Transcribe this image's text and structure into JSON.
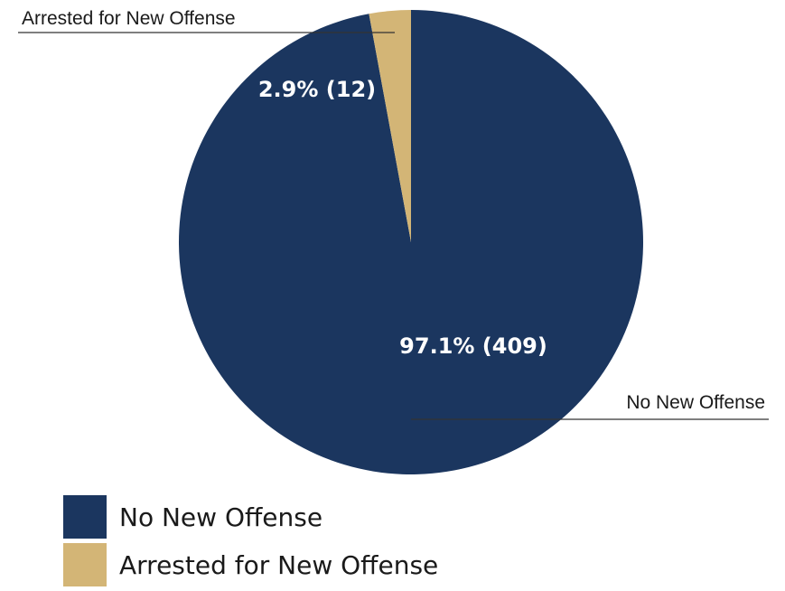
{
  "chart_data": {
    "type": "pie",
    "title": "",
    "start_angle_deg": 0,
    "direction": "clockwise",
    "slices": [
      {
        "label": "No New Offense",
        "percent": 97.1,
        "count": 409,
        "display": "97.1% (409)",
        "color": "#1b365f"
      },
      {
        "label": "Arrested for New Offense",
        "percent": 2.9,
        "count": 12,
        "display": "2.9% (12)",
        "color": "#d3b576"
      }
    ],
    "callouts": [
      "No New Offense",
      "Arrested for New Offense"
    ],
    "legend_position": "bottom-left"
  },
  "legend": {
    "items": [
      {
        "label": "No New Offense",
        "color": "#1b365f"
      },
      {
        "label": "Arrested for New Offense",
        "color": "#d3b576"
      }
    ]
  }
}
